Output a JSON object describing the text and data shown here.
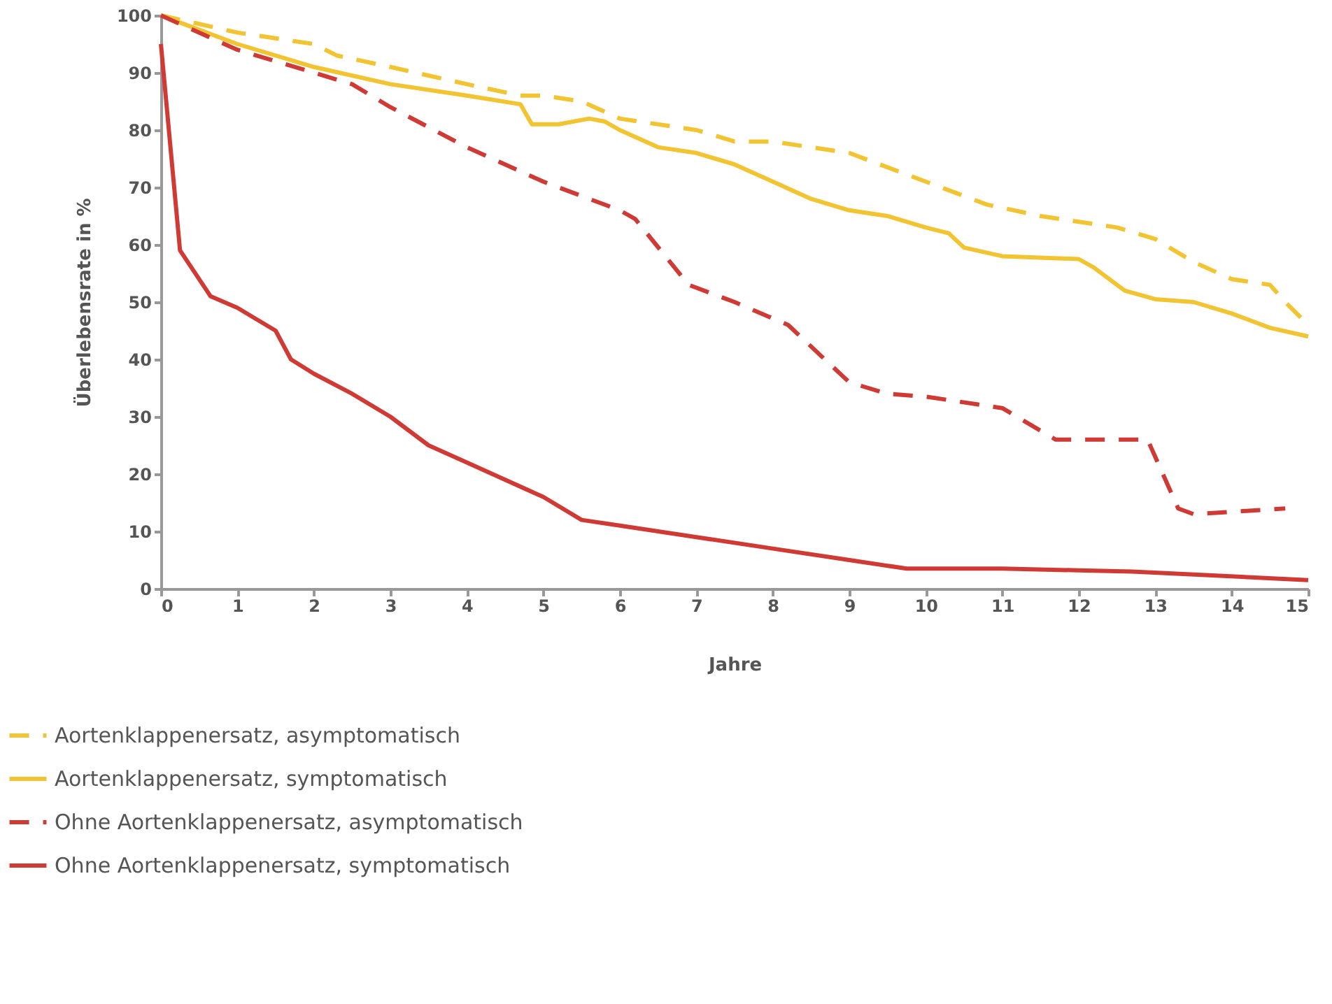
{
  "chart_data": {
    "type": "line",
    "xlabel": "Jahre",
    "ylabel": "Überlebensrate in %",
    "xlim": [
      0,
      15
    ],
    "ylim": [
      0,
      100
    ],
    "xticks": [
      0,
      1,
      2,
      3,
      4,
      5,
      6,
      7,
      8,
      9,
      10,
      11,
      12,
      13,
      14,
      15
    ],
    "yticks": [
      0,
      10,
      20,
      30,
      40,
      50,
      60,
      70,
      80,
      90,
      100
    ],
    "grid": false,
    "legend": "bottom",
    "marker": "none",
    "series": [
      {
        "name": "Aortenklappenersatz, asymptomatisch",
        "color": "#f2c431",
        "line_style": "dashed",
        "x": [
          0,
          1,
          2,
          2.3,
          3,
          4,
          4.7,
          5,
          5.5,
          6,
          7,
          7.5,
          8,
          8.5,
          9,
          10,
          10.8,
          11.5,
          12,
          12.5,
          13,
          13.5,
          14,
          14.5,
          14.7,
          15
        ],
        "values": [
          100,
          97,
          95,
          93,
          91,
          88,
          86,
          86,
          85,
          82,
          80,
          78,
          78,
          77,
          76,
          71,
          67,
          65,
          64,
          63,
          61,
          57,
          54,
          53,
          50,
          46
        ]
      },
      {
        "name": "Aortenklappenersatz, symptomatisch",
        "color": "#f2c431",
        "line_style": "solid",
        "x": [
          0,
          1,
          2,
          3,
          4,
          4.7,
          4.85,
          5.2,
          5.6,
          5.8,
          6,
          6.5,
          7,
          7.5,
          8,
          8.5,
          9,
          9.5,
          10,
          10.3,
          10.5,
          11,
          12,
          12.2,
          12.6,
          13,
          13.5,
          14,
          14.5,
          15
        ],
        "values": [
          100,
          95,
          91,
          88,
          86,
          84.5,
          81,
          81,
          82,
          81.5,
          80,
          77,
          76,
          74,
          71,
          68,
          66,
          65,
          63,
          62,
          59.5,
          58,
          57.5,
          56,
          52,
          50.5,
          50,
          48,
          45.5,
          44
        ]
      },
      {
        "name": "Ohne Aortenklappenersatz, asymptomatisch",
        "color": "#d03a35",
        "line_style": "dashed",
        "x": [
          0,
          1,
          2,
          2.5,
          3,
          4,
          5,
          6,
          6.2,
          6.9,
          7.5,
          8.2,
          9,
          9.5,
          10,
          11,
          11.7,
          12,
          12.5,
          12.9,
          13.3,
          13.5,
          14.7
        ],
        "values": [
          100,
          94,
          90,
          88,
          84,
          77,
          71,
          66,
          64.5,
          53,
          50,
          46,
          36,
          34,
          33.5,
          31.5,
          26,
          26,
          26,
          26,
          14,
          13,
          14
        ]
      },
      {
        "name": "Ohne Aortenklappenersatz, symptomatisch",
        "color": "#d03a35",
        "line_style": "solid",
        "x": [
          0,
          0.25,
          0.65,
          1,
          1.5,
          1.7,
          2,
          2.5,
          3,
          3.5,
          4,
          5,
          5.5,
          6,
          7,
          8,
          9,
          9.75,
          11,
          12,
          12.7,
          15
        ],
        "values": [
          95,
          59,
          51,
          49,
          45,
          40,
          37.5,
          34,
          30,
          25,
          22,
          16,
          12,
          11,
          9,
          7,
          5,
          3.5,
          3.5,
          3.2,
          3,
          1.5
        ]
      }
    ]
  }
}
